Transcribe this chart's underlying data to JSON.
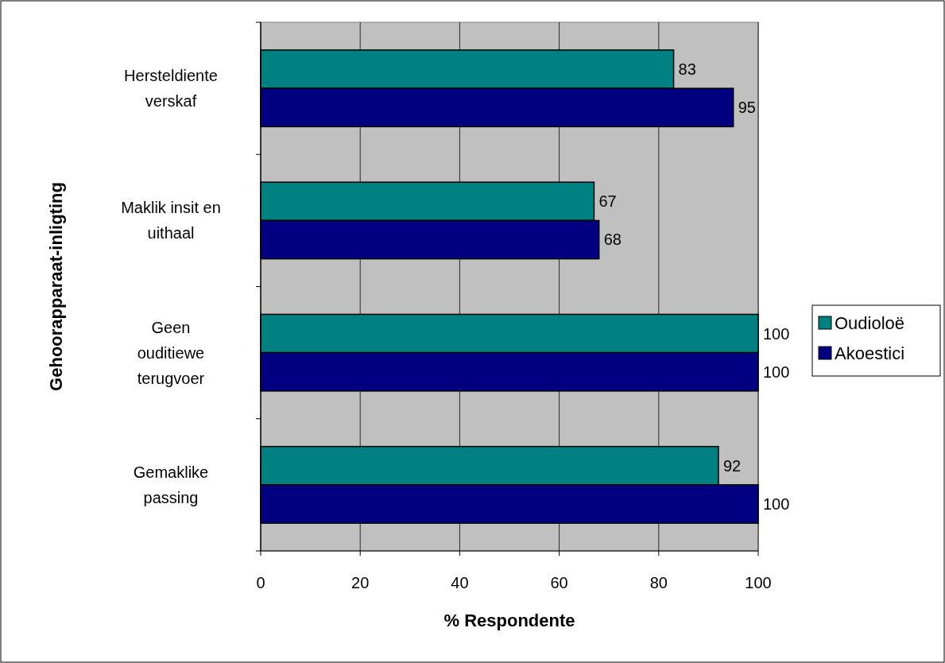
{
  "chart_data": {
    "type": "bar",
    "orientation": "horizontal",
    "xlabel": "% Respondente",
    "ylabel": "Gehoorapparaat-inligting",
    "categories": [
      "Hersteldiente\nverskaf",
      "Maklik insit en\nuithaal",
      "Geen\nouditiewe\nterugvoer",
      "Gemaklike\npassing"
    ],
    "series": [
      {
        "name": "Oudioloë",
        "color": "#008080",
        "values": [
          83,
          67,
          100,
          92
        ]
      },
      {
        "name": "Akoestici",
        "color": "#000080",
        "values": [
          95,
          68,
          100,
          100
        ]
      }
    ],
    "xlim": [
      0,
      100
    ],
    "xticks": [
      0,
      20,
      40,
      60,
      80,
      100
    ],
    "grid": "x",
    "legend": "right",
    "data_labels": true
  }
}
